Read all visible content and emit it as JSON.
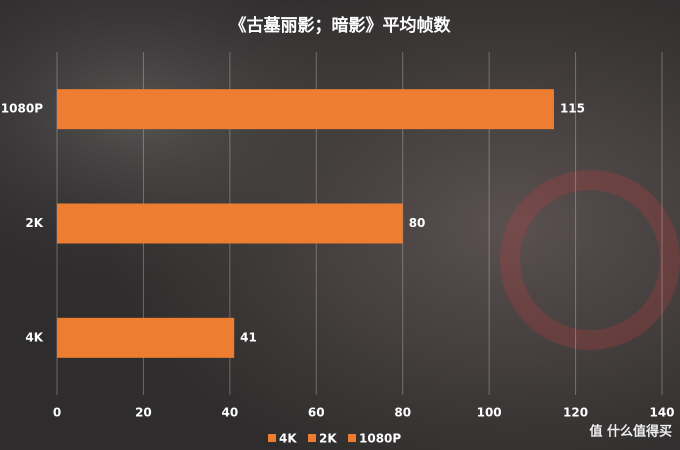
{
  "chart_data": {
    "type": "bar",
    "orientation": "horizontal",
    "title": "《古墓丽影；暗影》平均帧数",
    "categories": [
      "1080P",
      "2K",
      "4K"
    ],
    "values": [
      115,
      80,
      41
    ],
    "color": "#ed7d31",
    "xlim": [
      0,
      140
    ],
    "xticks": [
      0,
      20,
      40,
      60,
      80,
      100,
      120,
      140
    ],
    "grid": true,
    "legend": "bottom",
    "watermark": "值 什么值得买"
  }
}
